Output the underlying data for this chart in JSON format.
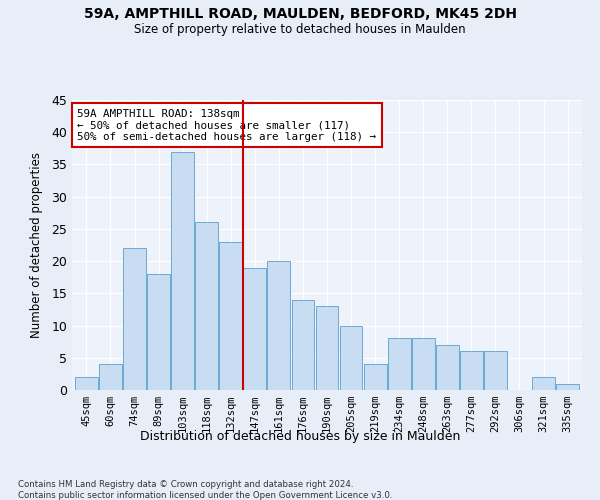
{
  "title1": "59A, AMPTHILL ROAD, MAULDEN, BEDFORD, MK45 2DH",
  "title2": "Size of property relative to detached houses in Maulden",
  "xlabel": "Distribution of detached houses by size in Maulden",
  "ylabel": "Number of detached properties",
  "bar_labels": [
    "45sqm",
    "60sqm",
    "74sqm",
    "89sqm",
    "103sqm",
    "118sqm",
    "132sqm",
    "147sqm",
    "161sqm",
    "176sqm",
    "190sqm",
    "205sqm",
    "219sqm",
    "234sqm",
    "248sqm",
    "263sqm",
    "277sqm",
    "292sqm",
    "306sqm",
    "321sqm",
    "335sqm"
  ],
  "bar_values": [
    2,
    4,
    22,
    18,
    37,
    26,
    23,
    19,
    20,
    14,
    13,
    10,
    4,
    8,
    8,
    7,
    6,
    6,
    0,
    2,
    1
  ],
  "bar_color": "#c9ddf2",
  "bar_edge_color": "#6aaad4",
  "vline_x_index": 6.5,
  "vline_color": "#cc0000",
  "annotation_text": "59A AMPTHILL ROAD: 138sqm\n← 50% of detached houses are smaller (117)\n50% of semi-detached houses are larger (118) →",
  "annotation_box_color": "#ffffff",
  "annotation_box_edge_color": "#cc0000",
  "ylim": [
    0,
    45
  ],
  "yticks": [
    0,
    5,
    10,
    15,
    20,
    25,
    30,
    35,
    40,
    45
  ],
  "footnote": "Contains HM Land Registry data © Crown copyright and database right 2024.\nContains public sector information licensed under the Open Government Licence v3.0.",
  "bg_color": "#e8eef8",
  "plot_bg_color": "#eef2fa"
}
